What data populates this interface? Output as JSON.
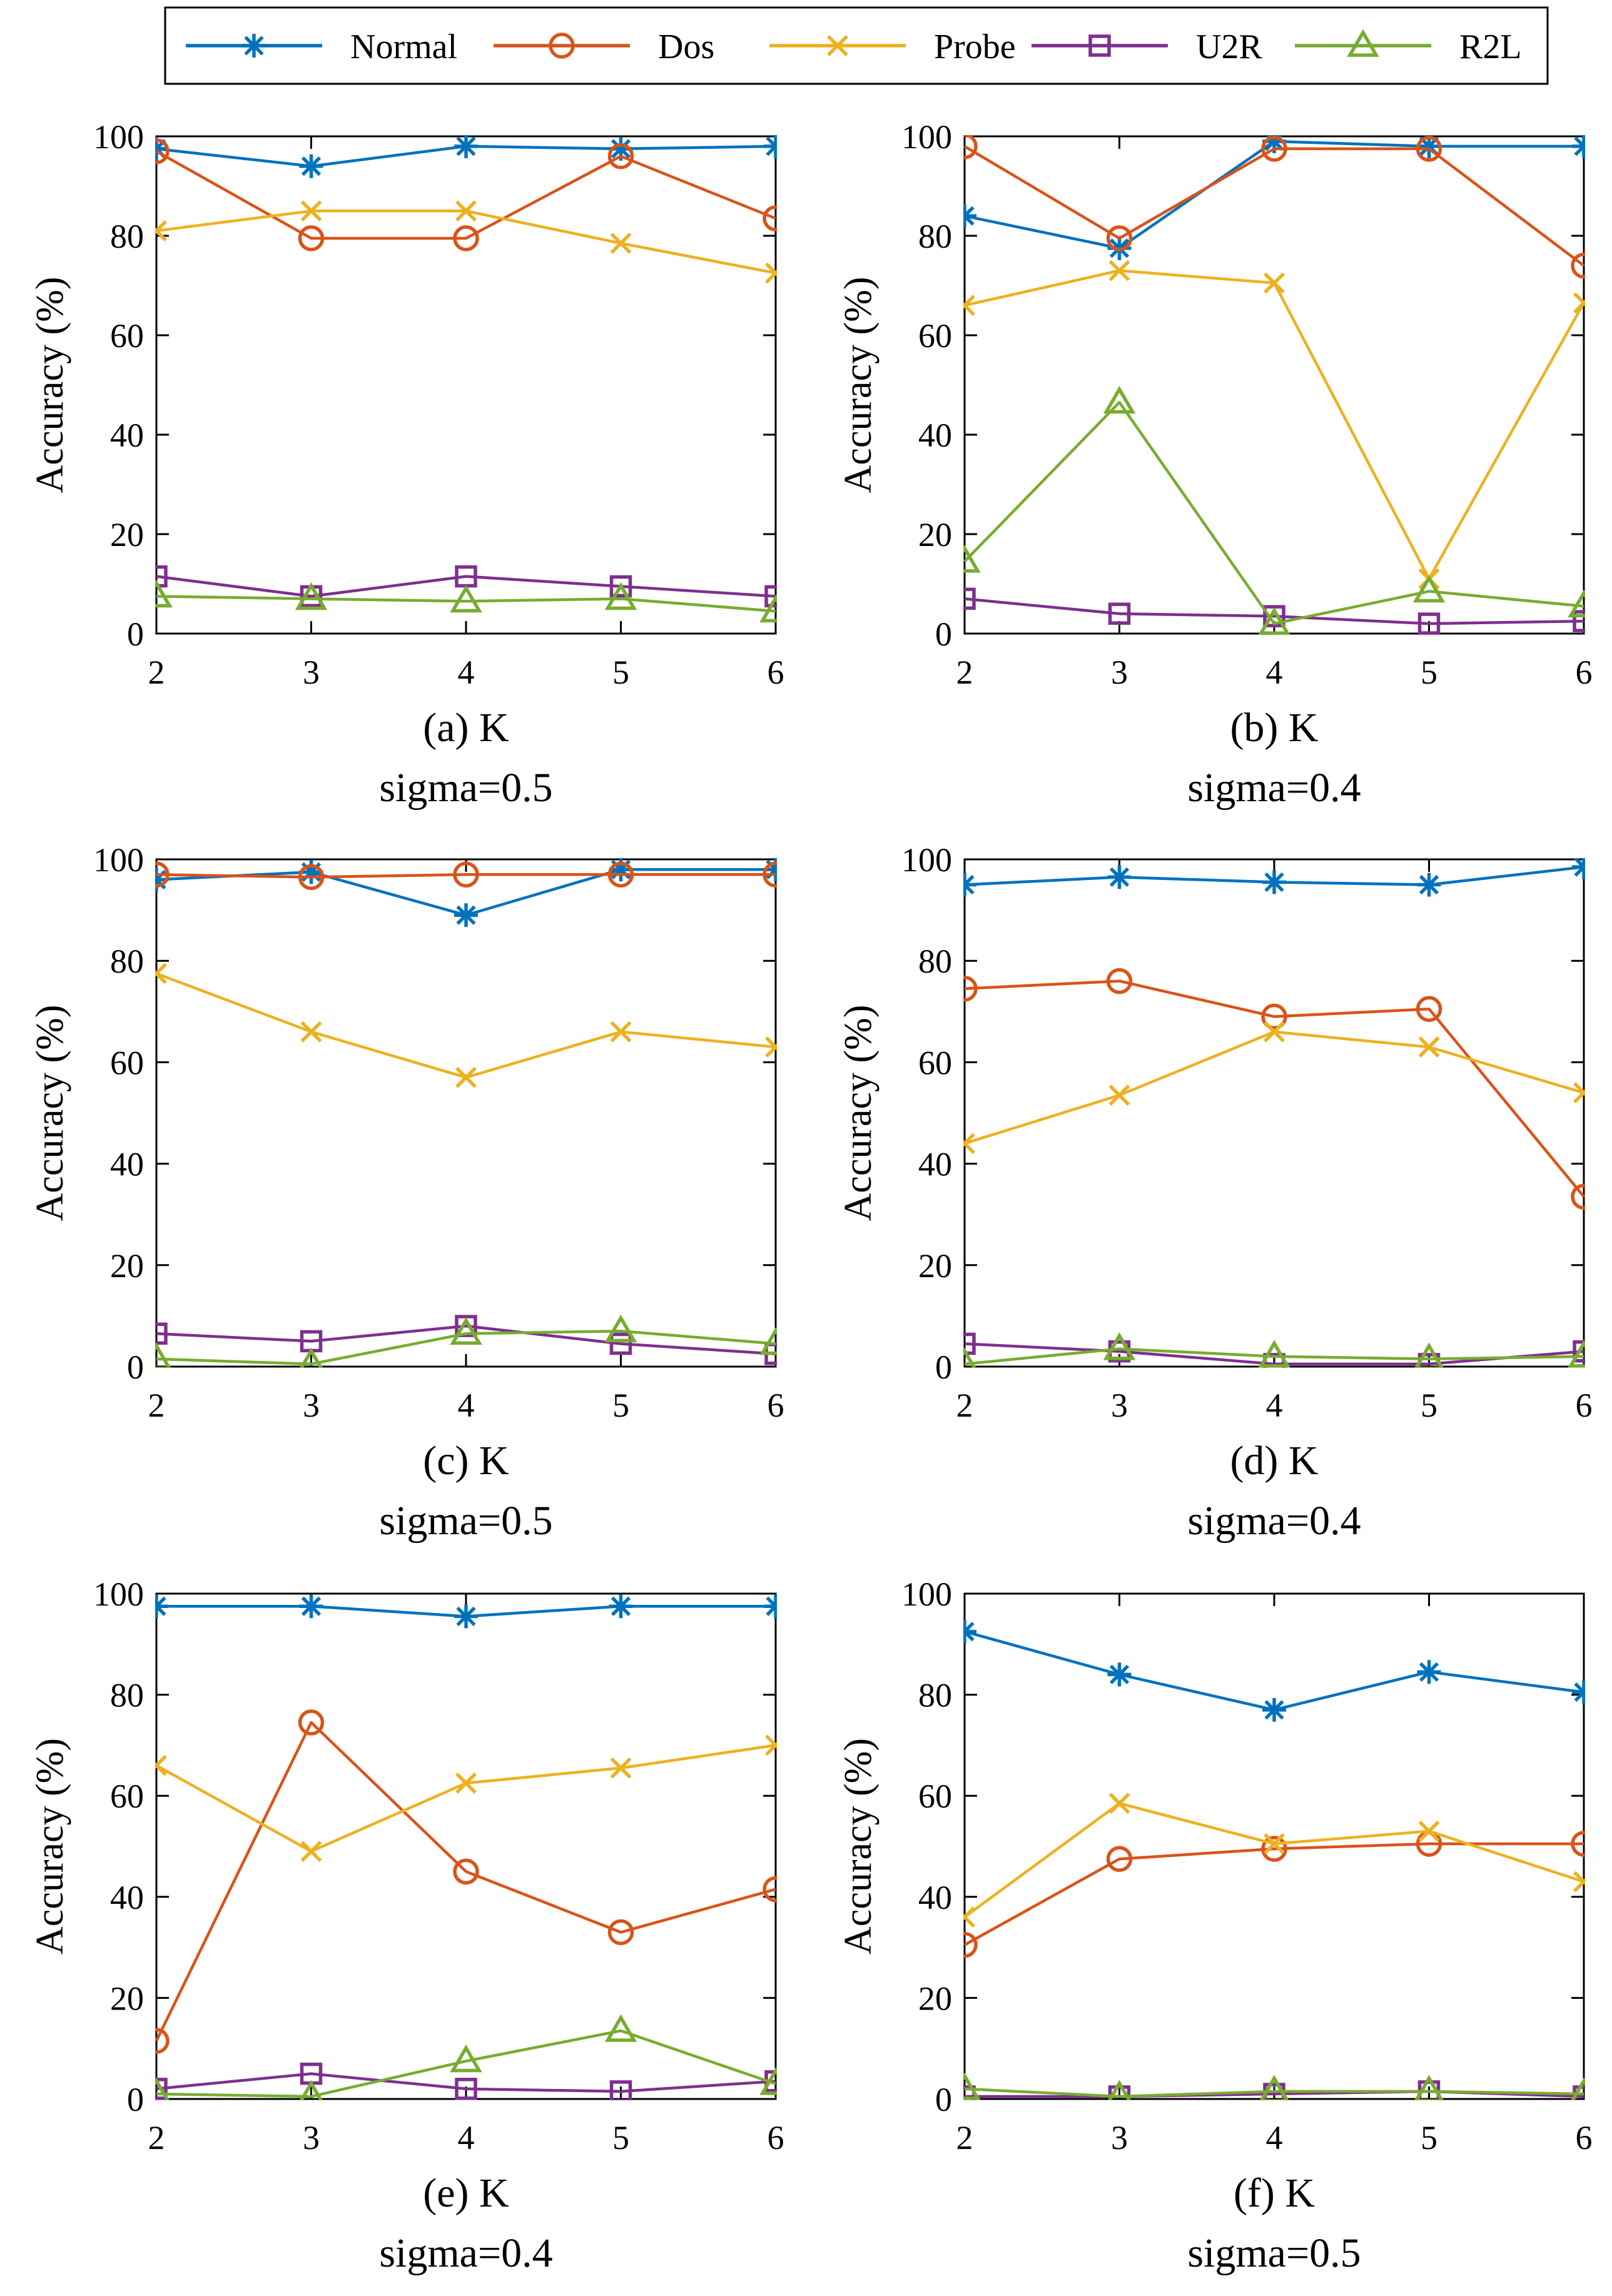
{
  "legend": [
    {
      "name": "Normal",
      "color": "#0072BD",
      "marker": "asterisk"
    },
    {
      "name": "Dos",
      "color": "#D95319",
      "marker": "circle"
    },
    {
      "name": "Probe",
      "color": "#EDB120",
      "marker": "x"
    },
    {
      "name": "U2R",
      "color": "#7E2F8E",
      "marker": "square"
    },
    {
      "name": "R2L",
      "color": "#77AC30",
      "marker": "triangle"
    }
  ],
  "chart_data": [
    {
      "type": "line",
      "panel": "a",
      "caption": "(a) K",
      "subcaption": "sigma=0.5",
      "xlabel": "",
      "ylabel": "Accuracy (%)",
      "x": [
        2,
        3,
        4,
        5,
        6
      ],
      "xlim": [
        2,
        6
      ],
      "ylim": [
        0,
        100
      ],
      "yticks": [
        0,
        20,
        40,
        60,
        80,
        100
      ],
      "grid": false,
      "series": [
        {
          "name": "Normal",
          "values": [
            97.5,
            94,
            98,
            97.5,
            98
          ]
        },
        {
          "name": "Dos",
          "values": [
            97,
            79.5,
            79.5,
            96,
            83.5
          ]
        },
        {
          "name": "Probe",
          "values": [
            81,
            85,
            85,
            78.5,
            72.5
          ]
        },
        {
          "name": "U2R",
          "values": [
            11.5,
            7.5,
            11.5,
            9.5,
            7.5
          ]
        },
        {
          "name": "R2L",
          "values": [
            7.5,
            7,
            6.5,
            7,
            4.5
          ]
        }
      ]
    },
    {
      "type": "line",
      "panel": "b",
      "caption": "(b) K",
      "subcaption": "sigma=0.4",
      "xlabel": "",
      "ylabel": "Accuracy (%)",
      "x": [
        2,
        3,
        4,
        5,
        6
      ],
      "xlim": [
        2,
        6
      ],
      "ylim": [
        0,
        100
      ],
      "yticks": [
        0,
        20,
        40,
        60,
        80,
        100
      ],
      "grid": false,
      "series": [
        {
          "name": "Normal",
          "values": [
            84,
            77.5,
            99,
            98,
            98
          ]
        },
        {
          "name": "Dos",
          "values": [
            98,
            79.5,
            97.5,
            97.5,
            74
          ]
        },
        {
          "name": "Probe",
          "values": [
            66,
            73,
            70.5,
            11,
            66.5
          ]
        },
        {
          "name": "U2R",
          "values": [
            7,
            4,
            3.5,
            2,
            2.5
          ]
        },
        {
          "name": "R2L",
          "values": [
            14.5,
            46.5,
            2,
            8.5,
            5.5
          ]
        }
      ]
    },
    {
      "type": "line",
      "panel": "c",
      "caption": "(c) K",
      "subcaption": "sigma=0.5",
      "xlabel": "",
      "ylabel": "Accuracy (%)",
      "x": [
        2,
        3,
        4,
        5,
        6
      ],
      "xlim": [
        2,
        6
      ],
      "ylim": [
        0,
        100
      ],
      "yticks": [
        0,
        20,
        40,
        60,
        80,
        100
      ],
      "grid": false,
      "series": [
        {
          "name": "Normal",
          "values": [
            96,
            97.5,
            89,
            98,
            98
          ]
        },
        {
          "name": "Dos",
          "values": [
            97,
            96.5,
            97,
            97,
            97
          ]
        },
        {
          "name": "Probe",
          "values": [
            77.5,
            66,
            57,
            66,
            63
          ]
        },
        {
          "name": "U2R",
          "values": [
            6.5,
            5,
            8,
            4.5,
            2.5
          ]
        },
        {
          "name": "R2L",
          "values": [
            1.5,
            0.5,
            6.5,
            7,
            4.5
          ]
        }
      ]
    },
    {
      "type": "line",
      "panel": "d",
      "caption": "(d) K",
      "subcaption": "sigma=0.4",
      "xlabel": "",
      "ylabel": "Accuracy (%)",
      "x": [
        2,
        3,
        4,
        5,
        6
      ],
      "xlim": [
        2,
        6
      ],
      "ylim": [
        0,
        100
      ],
      "yticks": [
        0,
        20,
        40,
        60,
        80,
        100
      ],
      "grid": false,
      "series": [
        {
          "name": "Normal",
          "values": [
            95,
            96.5,
            95.5,
            95,
            98.5
          ]
        },
        {
          "name": "Dos",
          "values": [
            74.5,
            76,
            69,
            70.5,
            33.5
          ]
        },
        {
          "name": "Probe",
          "values": [
            44,
            53.5,
            66,
            63,
            54
          ]
        },
        {
          "name": "U2R",
          "values": [
            4.5,
            3,
            0.5,
            0.5,
            3
          ]
        },
        {
          "name": "R2L",
          "values": [
            0.5,
            3.5,
            2,
            1.5,
            2
          ]
        }
      ]
    },
    {
      "type": "line",
      "panel": "e",
      "caption": "(e) K",
      "subcaption": "sigma=0.4",
      "xlabel": "",
      "ylabel": "Accuracy (%)",
      "x": [
        2,
        3,
        4,
        5,
        6
      ],
      "xlim": [
        2,
        6
      ],
      "ylim": [
        0,
        100
      ],
      "yticks": [
        0,
        20,
        40,
        60,
        80,
        100
      ],
      "grid": false,
      "series": [
        {
          "name": "Normal",
          "values": [
            97.5,
            97.5,
            95.5,
            97.5,
            97.5
          ]
        },
        {
          "name": "Dos",
          "values": [
            11.5,
            74.5,
            45,
            33,
            41.5
          ]
        },
        {
          "name": "Probe",
          "values": [
            66,
            49,
            62.5,
            65.5,
            70
          ]
        },
        {
          "name": "U2R",
          "values": [
            2,
            5,
            2,
            1.5,
            3.5
          ]
        },
        {
          "name": "R2L",
          "values": [
            1,
            0.5,
            7.5,
            13.5,
            3
          ]
        }
      ]
    },
    {
      "type": "line",
      "panel": "f",
      "caption": "(f) K",
      "subcaption": "sigma=0.5",
      "xlabel": "",
      "ylabel": "Accuracy (%)",
      "x": [
        2,
        3,
        4,
        5,
        6
      ],
      "xlim": [
        2,
        6
      ],
      "ylim": [
        0,
        100
      ],
      "yticks": [
        0,
        20,
        40,
        60,
        80,
        100
      ],
      "grid": false,
      "series": [
        {
          "name": "Normal",
          "values": [
            92.5,
            84,
            77,
            84.5,
            80.5
          ]
        },
        {
          "name": "Dos",
          "values": [
            30.5,
            47.5,
            49.5,
            50.5,
            50.5
          ]
        },
        {
          "name": "Probe",
          "values": [
            36,
            58.5,
            50.5,
            53,
            43
          ]
        },
        {
          "name": "U2R",
          "values": [
            0.5,
            0.5,
            1,
            1.5,
            0.5
          ]
        },
        {
          "name": "R2L",
          "values": [
            2,
            0.5,
            1.5,
            1.5,
            1
          ]
        }
      ]
    }
  ]
}
